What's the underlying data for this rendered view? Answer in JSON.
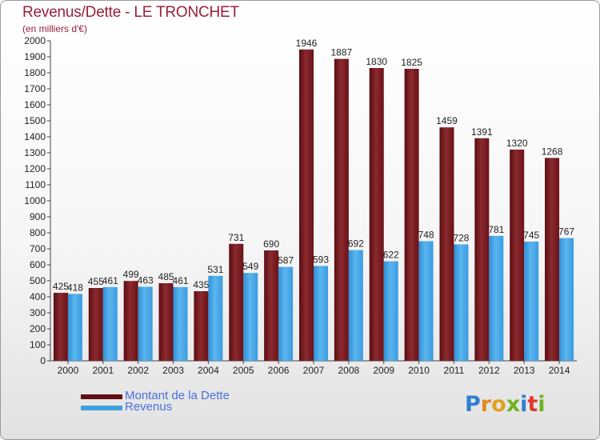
{
  "title": "Revenus/Dette - LE TRONCHET",
  "subtitle": "(en milliers d'€)",
  "colors": {
    "debt": "#7a1a20",
    "revenue": "#3fa0e0",
    "title": "#9a1f3b",
    "legend_text": "#4a6fe0"
  },
  "legend": [
    {
      "label": "Montant de la Dette",
      "color": "#5f0e12"
    },
    {
      "label": "Revenus",
      "color": "#3fa0e0"
    }
  ],
  "logo": {
    "text": "Proxiti"
  },
  "chart_data": {
    "type": "bar",
    "title": "Revenus/Dette - LE TRONCHET",
    "subtitle": "(en milliers d'€)",
    "categories": [
      "2000",
      "2001",
      "2002",
      "2003",
      "2004",
      "2005",
      "2006",
      "2007",
      "2008",
      "2009",
      "2010",
      "2011",
      "2012",
      "2013",
      "2014"
    ],
    "series": [
      {
        "name": "Montant de la Dette",
        "values": [
          425,
          455,
          499,
          485,
          435,
          731,
          690,
          1946,
          1887,
          1830,
          1825,
          1459,
          1391,
          1320,
          1268
        ]
      },
      {
        "name": "Revenus",
        "values": [
          418,
          461,
          463,
          461,
          531,
          549,
          587,
          593,
          692,
          622,
          748,
          728,
          781,
          745,
          767
        ]
      }
    ],
    "ylim": [
      0,
      2000
    ],
    "yticks": [
      0,
      100,
      200,
      300,
      400,
      500,
      600,
      700,
      800,
      900,
      1000,
      1100,
      1200,
      1300,
      1400,
      1500,
      1600,
      1700,
      1800,
      1900,
      2000
    ],
    "grid": false,
    "legend_position": "bottom-left"
  }
}
